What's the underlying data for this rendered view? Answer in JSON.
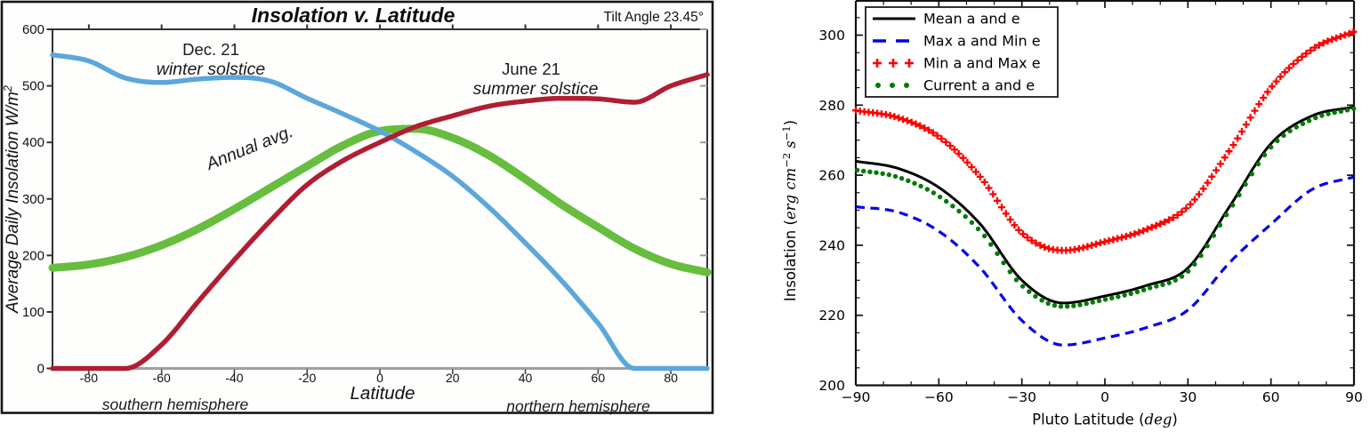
{
  "page": {
    "description": "Two insolation-versus-latitude charts side by side: Earth solstice insolation and Pluto insolation under different orbital parameters"
  },
  "chart_data": [
    {
      "id": "earth-insolation-v-latitude",
      "type": "line",
      "title": "Insolation v. Latitude",
      "subtitle": "Tilt Angle 23.45°",
      "xlabel": "Latitude",
      "ylabel": "Average Daily Insolation W/m²",
      "ylabel_parts": {
        "text": "Average Daily Insolation W/m",
        "sup": "2"
      },
      "xlim": [
        -90,
        90
      ],
      "ylim": [
        0,
        600
      ],
      "grid": false,
      "legend_position": "none",
      "xticks": [
        -80,
        -60,
        -40,
        -20,
        0,
        20,
        40,
        60,
        80
      ],
      "xtick_labels": [
        "-80",
        "-60",
        "-40",
        "-20",
        "0",
        "20",
        "40",
        "60",
        "80"
      ],
      "yticks": [
        0,
        100,
        200,
        300,
        400,
        500,
        600
      ],
      "ytick_labels": [
        "0",
        "100",
        "200",
        "300",
        "400",
        "500",
        "600"
      ],
      "hemispheres": {
        "south": "southern hemisphere",
        "north": "northern hemisphere"
      },
      "annotations": {
        "winter": {
          "line1": "Dec. 21",
          "line2": "winter solstice"
        },
        "summer": {
          "line1": "June 21",
          "line2": "summer solstice"
        },
        "annual": {
          "label": "Annual avg."
        }
      },
      "x": [
        -90,
        -80,
        -70,
        -60,
        -50,
        -40,
        -30,
        -20,
        -10,
        0,
        10,
        20,
        30,
        40,
        50,
        60,
        70,
        80,
        90
      ],
      "series": [
        {
          "name": "Dec. 21 winter solstice",
          "color": "#5BA7DC",
          "style": "solid",
          "width": 5.5,
          "values": [
            555,
            544,
            514,
            506,
            512,
            515,
            508,
            478,
            450,
            420,
            383,
            340,
            285,
            222,
            155,
            80,
            0,
            0,
            0
          ]
        },
        {
          "name": "June 21 summer solstice",
          "color": "#B01E33",
          "style": "solid",
          "width": 5.5,
          "values": [
            0,
            0,
            0,
            42,
            118,
            192,
            262,
            325,
            368,
            400,
            428,
            447,
            464,
            473,
            478,
            477,
            471,
            500,
            520
          ]
        },
        {
          "name": "Annual avg.",
          "color": "#67BD3E",
          "style": "solid",
          "width": 9,
          "values": [
            178,
            184,
            197,
            218,
            247,
            282,
            320,
            358,
            395,
            420,
            424,
            408,
            377,
            335,
            290,
            250,
            212,
            185,
            170
          ]
        }
      ]
    },
    {
      "id": "pluto-insolation-v-latitude",
      "type": "line",
      "title": "",
      "xlabel": "Pluto Latitude (deg)",
      "xlabel_parts": {
        "prefix": "Pluto Latitude (",
        "italic": "deg",
        "suffix": ")"
      },
      "ylabel": "Insolation (erg cm⁻² s⁻¹)",
      "ylabel_parts": {
        "prefix": "Insolation (",
        "u1": "erg cm",
        "s1": "−2",
        "u2": "s",
        "s2": "−1",
        "suffix": ")"
      },
      "xlim": [
        -90,
        90
      ],
      "ylim": [
        200,
        310
      ],
      "grid": false,
      "legend_position": "upper left",
      "xticks": [
        -90,
        -60,
        -30,
        0,
        30,
        60,
        90
      ],
      "xtick_labels": [
        "−90",
        "−60",
        "−30",
        "0",
        "30",
        "60",
        "90"
      ],
      "x_minor_step": 10,
      "yticks": [
        200,
        220,
        240,
        260,
        280,
        300
      ],
      "ytick_labels": [
        "200",
        "220",
        "240",
        "260",
        "280",
        "300"
      ],
      "y_minor_step": 5,
      "x": [
        -90,
        -75,
        -60,
        -45,
        -30,
        -15,
        0,
        15,
        30,
        45,
        60,
        75,
        90
      ],
      "series": [
        {
          "name": "Mean a and e",
          "color": "#000000",
          "style": "solid",
          "width": 3,
          "values": [
            264,
            262,
            256.5,
            246,
            230,
            223.5,
            225.5,
            228.5,
            233.5,
            251,
            269,
            277,
            279.5
          ]
        },
        {
          "name": "Max a and Min e",
          "color": "#0000EE",
          "style": "dashed",
          "width": 3.2,
          "values": [
            251,
            249.5,
            244,
            233.5,
            218.5,
            211.5,
            213.5,
            216.5,
            221.5,
            235,
            246,
            256,
            259.5
          ]
        },
        {
          "name": "Min a and Max e",
          "color": "#FF0000",
          "style": "plus",
          "width": 2.3,
          "values": [
            278.5,
            276.5,
            271,
            259.5,
            243.5,
            238.5,
            241,
            244.5,
            251,
            267,
            285,
            296,
            301
          ]
        },
        {
          "name": "Current a and e",
          "color": "#007A00",
          "style": "dots",
          "width": 2.7,
          "values": [
            261.5,
            259.5,
            254,
            244,
            228.5,
            222.5,
            224.5,
            227.5,
            232.5,
            250,
            268,
            276,
            279
          ]
        }
      ]
    }
  ]
}
